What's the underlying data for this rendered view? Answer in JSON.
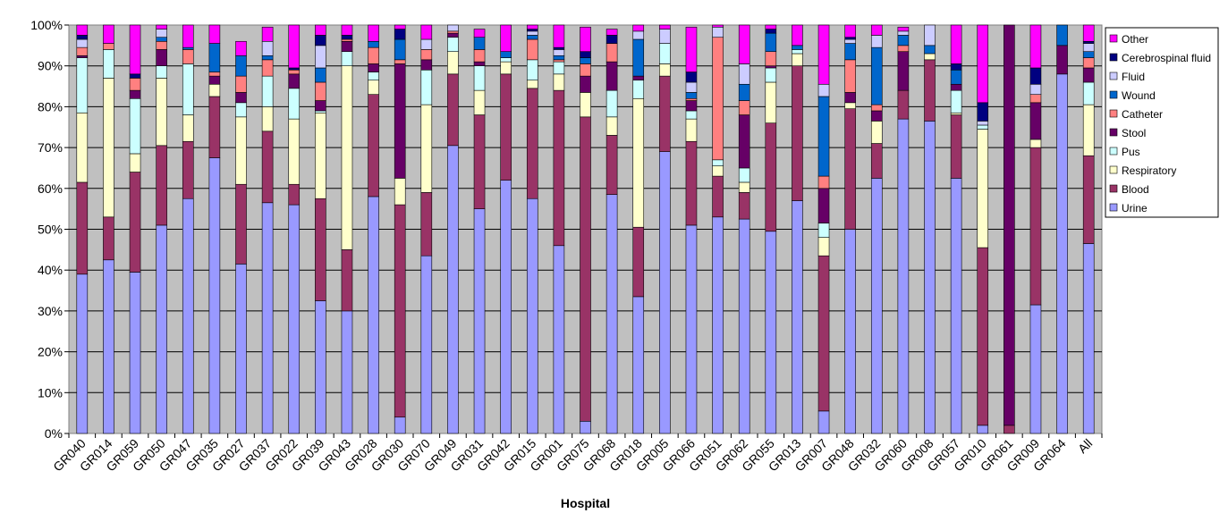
{
  "chart_data": {
    "type": "bar",
    "stacked": true,
    "percent": true,
    "title": "",
    "xlabel": "Hospital",
    "ylabel": "",
    "ylim": [
      0,
      100
    ],
    "yticks": [
      "0%",
      "10%",
      "20%",
      "30%",
      "40%",
      "50%",
      "60%",
      "70%",
      "80%",
      "90%",
      "100%"
    ],
    "grid": true,
    "legend_position": "right",
    "plot_background": "#c0c0c0",
    "categories": [
      "GR040",
      "GR014",
      "GR059",
      "GR050",
      "GR047",
      "GR035",
      "GR027",
      "GR037",
      "GR022",
      "GR039",
      "GR043",
      "GR028",
      "GR030",
      "GR070",
      "GR049",
      "GR031",
      "GR042",
      "GR015",
      "GR001",
      "GR075",
      "GR068",
      "GR018",
      "GR005",
      "GR066",
      "GR051",
      "GR062",
      "GR055",
      "GR013",
      "GR007",
      "GR048",
      "GR032",
      "GR060",
      "GR008",
      "GR057",
      "GR010",
      "GR061",
      "GR009",
      "GR064",
      "All"
    ],
    "series": [
      {
        "name": "Urine",
        "color": "#9999ff",
        "values": [
          39,
          42.5,
          39.5,
          51,
          57.5,
          67.5,
          41.5,
          56.5,
          56,
          32.5,
          30,
          58,
          4,
          43.5,
          70.5,
          55,
          62,
          57.5,
          46,
          3,
          58.5,
          33.5,
          69,
          51,
          53,
          52.5,
          49.5,
          57,
          5.5,
          50,
          62.5,
          77,
          76.5,
          62.5,
          2,
          0,
          31.5,
          88,
          46.5
        ]
      },
      {
        "name": "Blood",
        "color": "#993366",
        "values": [
          22.5,
          10.5,
          24.5,
          19.5,
          14,
          15,
          19.5,
          17.5,
          5,
          25,
          15,
          25,
          52,
          15.5,
          17.5,
          23,
          26,
          27,
          38,
          74.5,
          14.5,
          17,
          18.5,
          20.5,
          10,
          6.5,
          26.5,
          33,
          38,
          29.5,
          8.5,
          7,
          15,
          15.5,
          43.5,
          2,
          38.5,
          0,
          21.5
        ]
      },
      {
        "name": "Respiratory",
        "color": "#ffffcc",
        "values": [
          17,
          34,
          4.5,
          16.5,
          6.5,
          3,
          16.5,
          6,
          16,
          21,
          45,
          3.5,
          6.5,
          21.5,
          5.5,
          6,
          3,
          2,
          4,
          6,
          4.5,
          31.5,
          3,
          5.5,
          2.5,
          2.5,
          10,
          3,
          4.5,
          1.5,
          5.5,
          0,
          1.5,
          0.5,
          29,
          0,
          2,
          0,
          12.5
        ]
      },
      {
        "name": "Pus",
        "color": "#ccffff",
        "values": [
          13.5,
          7,
          13.5,
          3,
          12.5,
          0,
          3.5,
          7.5,
          7.5,
          0.5,
          3.5,
          2,
          0,
          8.5,
          3.5,
          6,
          1,
          5,
          3,
          0,
          6.5,
          4.5,
          5,
          2,
          1.5,
          3.5,
          3.5,
          1,
          3.5,
          0,
          0,
          0,
          0,
          5.5,
          1,
          0,
          0,
          0,
          5.5
        ]
      },
      {
        "name": "Stool",
        "color": "#660066",
        "values": [
          0.5,
          0,
          2,
          4,
          0,
          2,
          2.5,
          0,
          3.5,
          2.5,
          2.5,
          2,
          28,
          2.5,
          1,
          1,
          0,
          0,
          0,
          4,
          7,
          1,
          0,
          2.5,
          0,
          13,
          0.5,
          0,
          8.5,
          2.5,
          2.5,
          9.5,
          0,
          1.5,
          0,
          98,
          9,
          7,
          3.5
        ]
      },
      {
        "name": "Catheter",
        "color": "#ff8080",
        "values": [
          2,
          1.5,
          3,
          2,
          3.5,
          1,
          4,
          4,
          1,
          4.5,
          0.5,
          4,
          1,
          2.5,
          0.5,
          3,
          0,
          5,
          0.5,
          3,
          4.5,
          0,
          0,
          0.5,
          30,
          3.5,
          3.5,
          0,
          3,
          8,
          1.5,
          1.5,
          0,
          0,
          0,
          0,
          2,
          0,
          2.5
        ]
      },
      {
        "name": "Wound",
        "color": "#0066cc",
        "values": [
          0,
          0,
          0,
          1,
          0.5,
          7,
          5,
          1,
          0,
          3.5,
          0,
          1.5,
          5,
          0,
          0,
          3,
          1.5,
          1,
          1,
          1.5,
          0,
          9,
          0,
          1.5,
          0,
          4,
          4.5,
          1,
          19.5,
          4,
          14,
          2.5,
          2,
          3.5,
          0,
          0,
          0,
          5,
          1.5
        ]
      },
      {
        "name": "Fluid",
        "color": "#ccccff",
        "values": [
          2,
          0,
          0,
          2,
          0,
          0,
          0,
          3.5,
          0,
          5.5,
          0,
          0,
          0,
          2.5,
          2,
          0,
          0,
          1,
          1.5,
          0,
          0,
          2,
          3.5,
          2.5,
          2.5,
          5,
          0,
          0,
          3,
          1,
          3,
          1,
          5,
          0,
          1,
          0,
          2.5,
          0,
          2
        ]
      },
      {
        "name": "Cerebrospinal fluid",
        "color": "#000080",
        "values": [
          1,
          0,
          1,
          0,
          0,
          0,
          0,
          0,
          0.5,
          2.5,
          1,
          0,
          2.5,
          0,
          0.5,
          0,
          0,
          0.5,
          0.5,
          1.5,
          2,
          0,
          0,
          2.5,
          0,
          0,
          1,
          0,
          0,
          0.5,
          0,
          0,
          0,
          1.5,
          4.5,
          0,
          4,
          0,
          0.5
        ]
      },
      {
        "name": "Other",
        "color": "#ff00ff",
        "values": [
          2.5,
          4.5,
          12,
          1,
          5.5,
          4.5,
          3.5,
          3.5,
          10.5,
          2.5,
          2.5,
          4,
          1,
          3.5,
          0,
          2,
          7.5,
          1,
          5.5,
          6,
          1.5,
          1.5,
          1,
          11,
          0.5,
          9.5,
          1,
          5,
          14.5,
          3,
          2.5,
          1,
          0,
          10.5,
          19,
          0,
          10.5,
          0,
          4
        ]
      }
    ]
  }
}
